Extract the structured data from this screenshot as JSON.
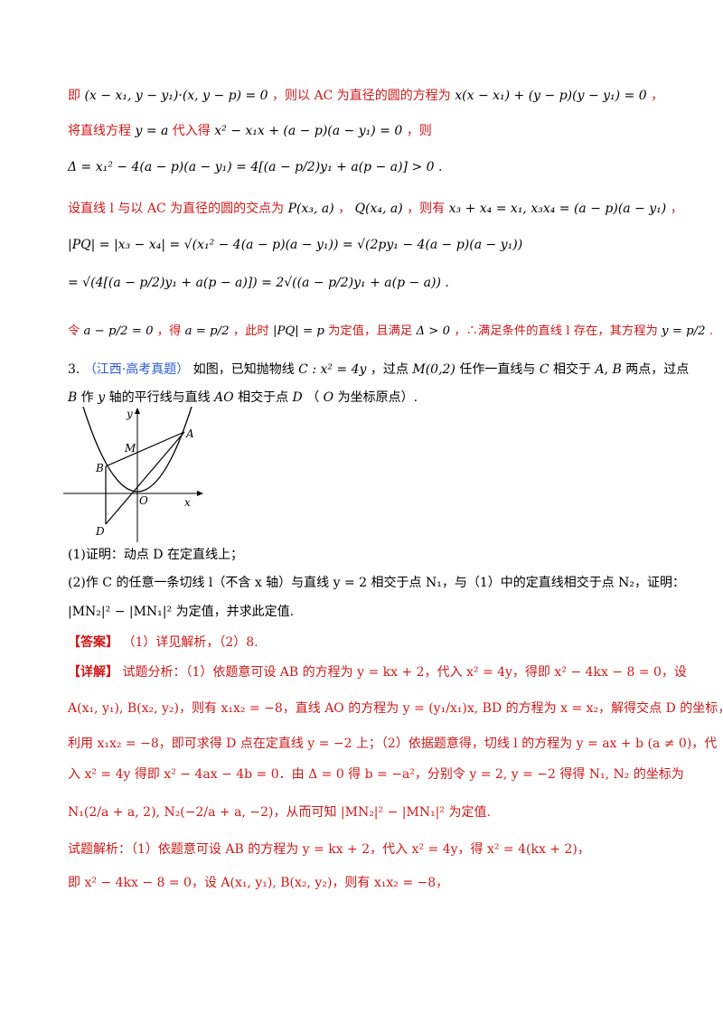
{
  "top": {
    "l1": {
      "a": "即",
      "f1": "(x − x₁, y − y₁)·(x, y − p) = 0",
      "b": "，则以 AC 为直径的圆的方程为",
      "f2": "x(x − x₁) + (y − p)(y − y₁) = 0",
      "c": "，"
    },
    "l2": {
      "a": "将直线方程",
      "f1": "y = a",
      "b": "代入得",
      "f2": "x² − x₁x + (a − p)(a − y₁) = 0",
      "c": "，则"
    },
    "l3": {
      "f1": "Δ = x₁² − 4(a − p)(a − y₁) = 4[(a − p/2)y₁ + a(p − a)] > 0",
      "c": "."
    },
    "l4": {
      "a": "设直线 l 与以 AC 为直径的圆的交点为",
      "f1": "P(x₃, a)",
      "b": "，",
      "f2": "Q(x₄, a)",
      "c": "，则有",
      "f3": "x₃ + x₄ = x₁, x₃x₄ = (a − p)(a − y₁)",
      "d": "，"
    },
    "l5": {
      "f1": "|PQ| = |x₃ − x₄| = √(x₁² − 4(a − p)(a − y₁)) = √(2py₁ − 4(a − p)(a − y₁))"
    },
    "l6": {
      "f1": "= √(4[(a − p/2)y₁ + a(p − a)]) = 2√((a − p/2)y₁ + a(p − a))",
      "c": "."
    },
    "l7": {
      "a": "令",
      "f1": "a − p/2 = 0",
      "b": "，得",
      "f2": "a = p/2",
      "c": "，此时",
      "f3": "|PQ| = p",
      "d": "为定值，且满足",
      "f4": "Δ > 0",
      "e": "，∴满足条件的直线 l 存在，其方程为",
      "f5": "y = p/2",
      "g": "."
    }
  },
  "problem": {
    "number": "3.",
    "source": "（江西·高考真题）",
    "l1": {
      "a": "如图，已知抛物线",
      "f1": "C : x² = 4y",
      "b": "，过点",
      "f2": "M(0,2)",
      "c": "任作一直线与",
      "f3": "C",
      "d": "相交于",
      "f4": "A, B",
      "e": "两点，过点"
    },
    "l2": {
      "f1": "B",
      "a": "作",
      "f2": "y",
      "b": "轴的平行线与直线",
      "f3": "AO",
      "c": "相交于点",
      "f4": "D",
      "d": "（",
      "f5": "O",
      "e": "为坐标原点）."
    },
    "q1": "(1)证明：动点 D 在定直线上；",
    "q2a": "(2)作 C 的任意一条切线 l（不含 x 轴）与直线 y = 2 相交于点 N₁，与（1）中的定直线相交于点 N₂，证明：",
    "q2b": "|MN₂|² − |MN₁|² 为定值，并求此定值."
  },
  "figure": {
    "y": "y",
    "x": "x",
    "A": "A",
    "M": "M",
    "B": "B",
    "O": "O",
    "D": "D"
  },
  "answer": {
    "tag": "【答案】",
    "text": "（1）详见解析，（2）8."
  },
  "detail": {
    "tag": "【详解】",
    "l1": "试题分析：（1）依题意可设 AB 的方程为 y = kx + 2，代入 x² = 4y，得即 x² − 4kx − 8 = 0，设",
    "l2": "A(x₁, y₁), B(x₂, y₂)，则有 x₁x₂ = −8，直线 AO 的方程为 y = (y₁/x₁)x, BD 的方程为 x = x₂，解得交点 D 的坐标，",
    "l3": "利用 x₁x₂ = −8，即可求得 D 点在定直线 y = −2 上；（2）依据题意得，切线 l 的方程为 y = ax + b (a ≠ 0)，代",
    "l4": "入 x² = 4y 得即 x² − 4ax − 4b = 0．由 Δ = 0 得 b = −a²，分别令 y = 2, y = −2 得得 N₁, N₂ 的坐标为",
    "l5": "N₁(2/a + a, 2), N₂(−2/a + a, −2)，从而可知 |MN₂|² − |MN₁|² 为定值."
  },
  "solution": {
    "l1": "试题解析：（1）依题意可设 AB 的方程为 y = kx + 2，代入 x² = 4y，得 x² = 4(kx + 2)，",
    "l2": "即 x² − 4kx − 8 = 0，设 A(x₁, y₁), B(x₂, y₂)，则有 x₁x₂ = −8，"
  }
}
